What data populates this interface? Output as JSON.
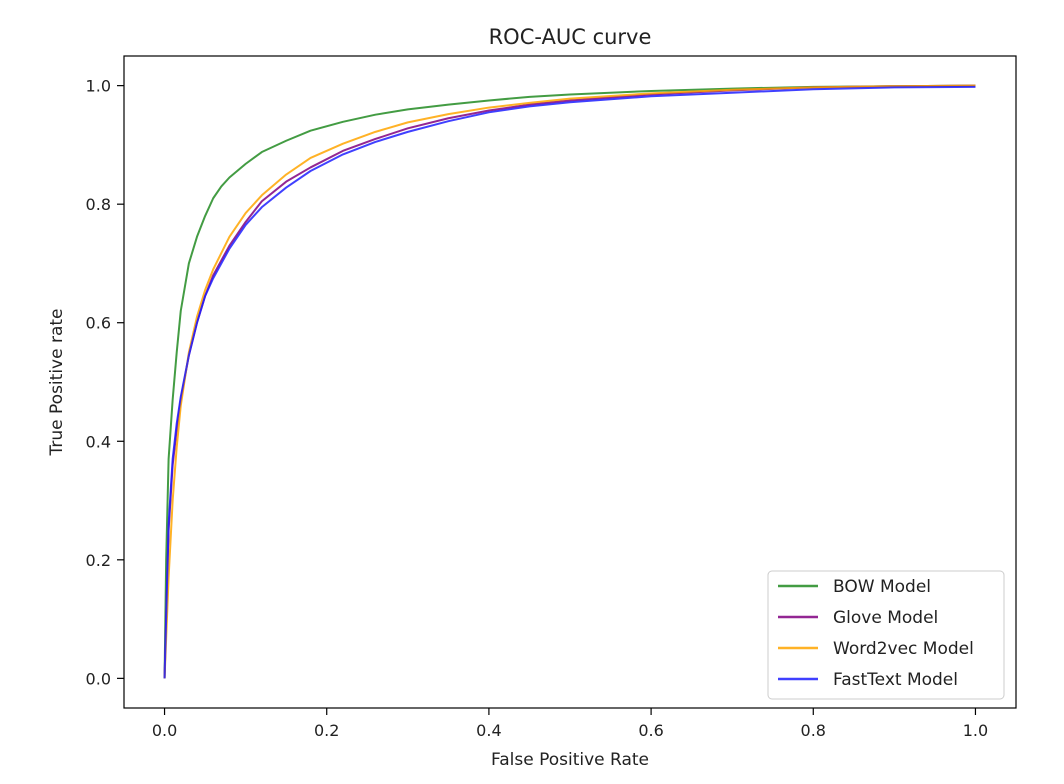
{
  "chart_data": {
    "type": "line",
    "title": "ROC-AUC curve",
    "xlabel": "False Positive Rate",
    "ylabel": "True Positive rate",
    "xlim": [
      -0.05,
      1.05
    ],
    "ylim": [
      -0.05,
      1.05
    ],
    "xticks": [
      0.0,
      0.2,
      0.4,
      0.6,
      0.8,
      1.0
    ],
    "yticks": [
      0.0,
      0.2,
      0.4,
      0.6,
      0.8,
      1.0
    ],
    "xtick_labels": [
      "0.0",
      "0.2",
      "0.4",
      "0.6",
      "0.8",
      "1.0"
    ],
    "ytick_labels": [
      "0.0",
      "0.2",
      "0.4",
      "0.6",
      "0.8",
      "1.0"
    ],
    "grid": false,
    "legend_position": "lower-right",
    "series": [
      {
        "name": "BOW Model",
        "color": "#228B22",
        "x": [
          0.0,
          0.002,
          0.005,
          0.01,
          0.015,
          0.02,
          0.03,
          0.04,
          0.05,
          0.06,
          0.07,
          0.08,
          0.1,
          0.12,
          0.15,
          0.18,
          0.22,
          0.26,
          0.3,
          0.35,
          0.4,
          0.45,
          0.5,
          0.6,
          0.7,
          0.8,
          0.9,
          1.0
        ],
        "y": [
          0.0,
          0.2,
          0.37,
          0.47,
          0.55,
          0.62,
          0.7,
          0.745,
          0.78,
          0.81,
          0.83,
          0.845,
          0.868,
          0.888,
          0.907,
          0.924,
          0.939,
          0.951,
          0.96,
          0.968,
          0.975,
          0.981,
          0.985,
          0.991,
          0.995,
          0.998,
          0.999,
          1.0
        ]
      },
      {
        "name": "Glove Model",
        "color": "#800080",
        "x": [
          0.0,
          0.005,
          0.01,
          0.015,
          0.02,
          0.03,
          0.04,
          0.05,
          0.06,
          0.08,
          0.1,
          0.12,
          0.15,
          0.18,
          0.22,
          0.26,
          0.3,
          0.35,
          0.4,
          0.45,
          0.5,
          0.6,
          0.7,
          0.8,
          0.9,
          1.0
        ],
        "y": [
          0.0,
          0.25,
          0.36,
          0.42,
          0.47,
          0.545,
          0.6,
          0.645,
          0.68,
          0.73,
          0.77,
          0.805,
          0.838,
          0.862,
          0.89,
          0.91,
          0.928,
          0.945,
          0.958,
          0.968,
          0.975,
          0.985,
          0.992,
          0.997,
          0.999,
          1.0
        ]
      },
      {
        "name": "Word2vec Model",
        "color": "#FFA500",
        "x": [
          0.0,
          0.005,
          0.01,
          0.015,
          0.02,
          0.03,
          0.04,
          0.05,
          0.06,
          0.08,
          0.1,
          0.12,
          0.15,
          0.18,
          0.22,
          0.26,
          0.3,
          0.35,
          0.4,
          0.45,
          0.5,
          0.6,
          0.7,
          0.8,
          0.9,
          1.0
        ],
        "y": [
          0.0,
          0.17,
          0.3,
          0.39,
          0.46,
          0.55,
          0.61,
          0.655,
          0.69,
          0.745,
          0.785,
          0.815,
          0.85,
          0.878,
          0.902,
          0.922,
          0.938,
          0.952,
          0.963,
          0.971,
          0.978,
          0.987,
          0.993,
          0.997,
          0.999,
          1.0
        ]
      },
      {
        "name": "FastText Model",
        "color": "#1F1FFF",
        "x": [
          0.0,
          0.005,
          0.01,
          0.015,
          0.02,
          0.03,
          0.04,
          0.05,
          0.06,
          0.08,
          0.1,
          0.12,
          0.15,
          0.18,
          0.22,
          0.26,
          0.3,
          0.35,
          0.4,
          0.45,
          0.5,
          0.6,
          0.7,
          0.8,
          0.9,
          1.0
        ],
        "y": [
          0.0,
          0.26,
          0.37,
          0.43,
          0.475,
          0.545,
          0.6,
          0.645,
          0.675,
          0.725,
          0.765,
          0.795,
          0.828,
          0.856,
          0.884,
          0.905,
          0.922,
          0.94,
          0.955,
          0.965,
          0.972,
          0.982,
          0.988,
          0.994,
          0.997,
          0.998
        ]
      }
    ]
  }
}
